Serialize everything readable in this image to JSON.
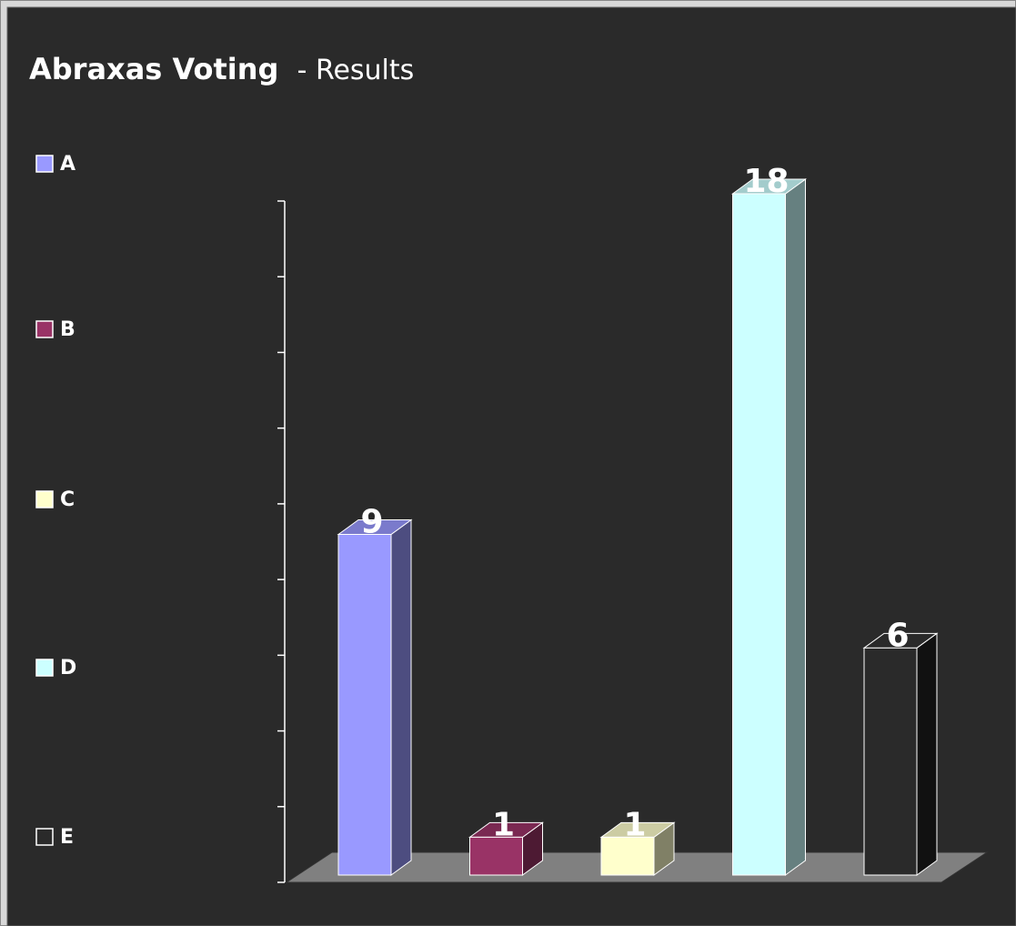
{
  "chart_data": {
    "type": "bar3d",
    "title": "Abraxas Voting",
    "subtitle": "- Results",
    "categories": [
      "A",
      "B",
      "C",
      "D",
      "E"
    ],
    "values": [
      9,
      1,
      1,
      18,
      6
    ],
    "colors": [
      "#9999ff",
      "#993366",
      "#ffffcc",
      "#ccffff",
      "#2a2a2a"
    ],
    "ylim": [
      0,
      18
    ],
    "yticks": [
      0,
      2,
      4,
      6,
      8,
      10,
      12,
      14,
      16,
      18
    ],
    "legend": "left"
  }
}
